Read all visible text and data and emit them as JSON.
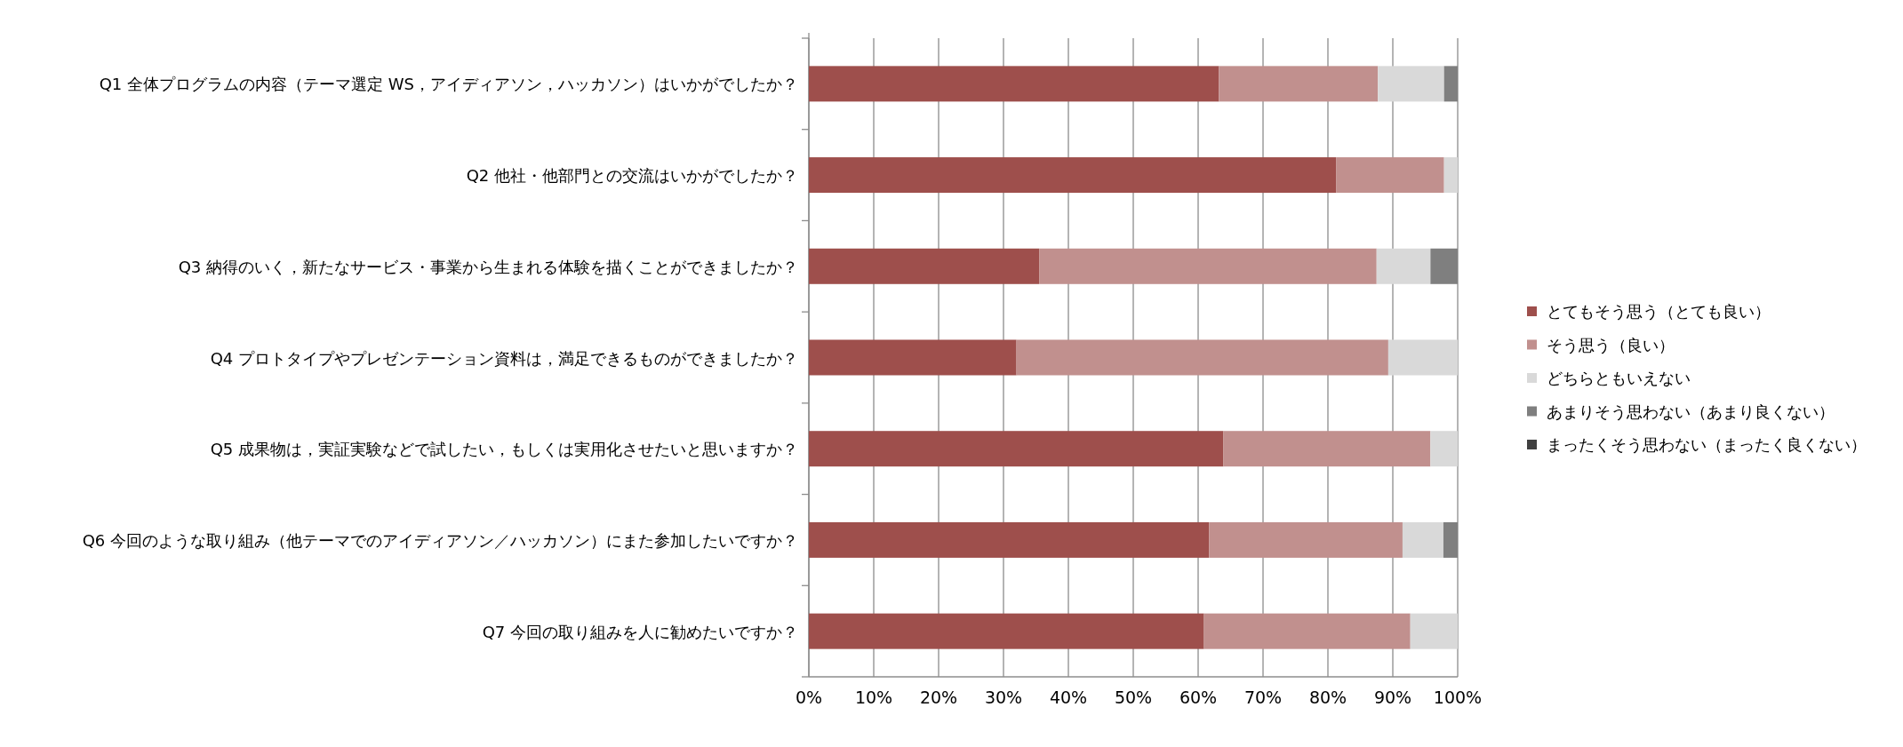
{
  "chart_data": {
    "type": "bar",
    "orientation": "horizontal",
    "stacked": true,
    "categories": [
      "Q1 全体プログラムの内容（テーマ選定 WS，アイディアソン，ハッカソン）はいかがでしたか？",
      "Q2 他社・他部門との交流はいかがでしたか？",
      "Q3 納得のいく，新たなサービス・事業から生まれる体験を描くことができましたか？",
      "Q4 プロトタイプやプレゼンテーション資料は，満足できるものができましたか？",
      "Q5 成果物は，実証実験などで試したい，もしくは実用化させたいと思いますか？",
      "Q6 今回のような取り組み（他テーマでのアイディアソン／ハッカソン）にまた参加したいですか？",
      "Q7 今回の取り組みを人に勧めたいですか？"
    ],
    "series": [
      {
        "name": "とてもそう思う（とても良い）",
        "color": "#9e4f4c",
        "values": [
          63.2,
          81.3,
          35.5,
          32.0,
          63.9,
          61.7,
          60.9
        ]
      },
      {
        "name": "そう思う（良い）",
        "color": "#c1908e",
        "values": [
          24.5,
          16.6,
          52.0,
          57.3,
          31.9,
          29.8,
          31.8
        ]
      },
      {
        "name": "どちらともいえない",
        "color": "#d9d9d9",
        "values": [
          10.2,
          2.1,
          8.3,
          10.7,
          4.2,
          6.3,
          7.3
        ]
      },
      {
        "name": "あまりそう思わない（あまり良くない）",
        "color": "#7f7f7f",
        "values": [
          2.1,
          0,
          4.2,
          0,
          0,
          2.2,
          0
        ]
      },
      {
        "name": "まったくそう思わない（まったく良くない）",
        "color": "#404040",
        "values": [
          0,
          0,
          0,
          0,
          0,
          0,
          0
        ]
      }
    ],
    "xlim": [
      0,
      100
    ],
    "xticks": [
      {
        "value": 0,
        "label": "0%"
      },
      {
        "value": 10,
        "label": "10%"
      },
      {
        "value": 20,
        "label": "20%"
      },
      {
        "value": 30,
        "label": "30%"
      },
      {
        "value": 40,
        "label": "40%"
      },
      {
        "value": 50,
        "label": "50%"
      },
      {
        "value": 60,
        "label": "60%"
      },
      {
        "value": 70,
        "label": "70%"
      },
      {
        "value": 80,
        "label": "80%"
      },
      {
        "value": 90,
        "label": "90%"
      },
      {
        "value": 100,
        "label": "100%"
      }
    ],
    "grid": "x",
    "legend": "right"
  }
}
